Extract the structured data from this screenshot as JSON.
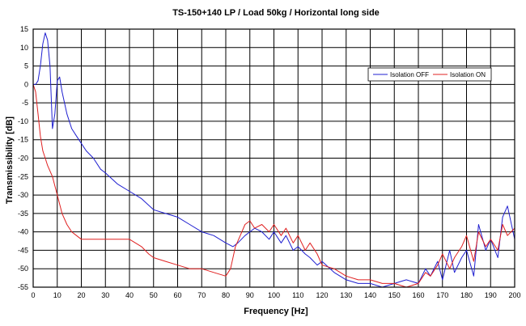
{
  "chart_data": {
    "type": "line",
    "title": "TS-150+140 LP / Load 50kg / Horizontal long side",
    "xlabel": "Frequency [Hz]",
    "ylabel": "Transmissibility [dB]",
    "xlim": [
      0,
      200
    ],
    "ylim": [
      -55,
      15
    ],
    "xticks": [
      0,
      10,
      20,
      30,
      40,
      50,
      60,
      70,
      80,
      90,
      100,
      110,
      120,
      130,
      140,
      150,
      160,
      170,
      180,
      190,
      200
    ],
    "yticks": [
      15,
      10,
      5,
      0,
      -5,
      -10,
      -15,
      -20,
      -25,
      -30,
      -35,
      -40,
      -45,
      -50,
      -55
    ],
    "grid": true,
    "legend_position": "top-right",
    "series": [
      {
        "name": "Isolation OFF",
        "color": "#1f1fd0",
        "x": [
          0,
          1,
          2,
          3,
          4,
          5,
          6,
          7,
          8,
          9,
          10,
          11,
          12,
          14,
          16,
          18,
          20,
          22,
          25,
          28,
          30,
          35,
          40,
          45,
          50,
          55,
          60,
          65,
          70,
          75,
          80,
          83,
          85,
          88,
          90,
          92,
          95,
          98,
          100,
          103,
          105,
          108,
          110,
          113,
          115,
          118,
          120,
          125,
          130,
          135,
          140,
          145,
          150,
          155,
          160,
          163,
          165,
          168,
          170,
          173,
          175,
          178,
          180,
          183,
          185,
          188,
          190,
          193,
          195,
          197,
          200
        ],
        "y": [
          0,
          0,
          1,
          5,
          11,
          14,
          12,
          5,
          -12,
          -8,
          1,
          2,
          -2,
          -8,
          -12,
          -14,
          -16,
          -18,
          -20,
          -23,
          -24,
          -27,
          -29,
          -31,
          -34,
          -35,
          -36,
          -38,
          -40,
          -41,
          -43,
          -44,
          -43,
          -41,
          -40,
          -39,
          -40,
          -42,
          -40,
          -43,
          -41,
          -45,
          -44,
          -46,
          -47,
          -49,
          -48,
          -51,
          -53,
          -54,
          -54,
          -55,
          -54,
          -53,
          -54,
          -50,
          -52,
          -48,
          -53,
          -45,
          -51,
          -47,
          -45,
          -52,
          -38,
          -45,
          -42,
          -47,
          -36,
          -33,
          -42
        ]
      },
      {
        "name": "Isolation ON",
        "color": "#e02020",
        "x": [
          0,
          1,
          2,
          3,
          4,
          5,
          6,
          8,
          10,
          12,
          14,
          16,
          18,
          20,
          25,
          30,
          35,
          40,
          45,
          48,
          50,
          55,
          60,
          65,
          70,
          75,
          80,
          82,
          84,
          86,
          88,
          90,
          92,
          95,
          98,
          100,
          103,
          105,
          108,
          110,
          113,
          115,
          118,
          120,
          125,
          130,
          135,
          140,
          145,
          150,
          155,
          160,
          163,
          165,
          168,
          170,
          173,
          175,
          178,
          180,
          183,
          185,
          188,
          190,
          193,
          195,
          197,
          200
        ],
        "y": [
          0,
          -2,
          -8,
          -14,
          -18,
          -20,
          -22,
          -25,
          -30,
          -35,
          -38,
          -40,
          -41,
          -42,
          -42,
          -42,
          -42,
          -42,
          -44,
          -46,
          -47,
          -48,
          -49,
          -50,
          -50,
          -51,
          -52,
          -50,
          -44,
          -41,
          -38,
          -37,
          -39,
          -38,
          -40,
          -38,
          -41,
          -39,
          -43,
          -41,
          -45,
          -43,
          -46,
          -49,
          -50,
          -52,
          -53,
          -53,
          -54,
          -54,
          -55,
          -54,
          -51,
          -52,
          -49,
          -46,
          -50,
          -47,
          -44,
          -41,
          -48,
          -40,
          -44,
          -42,
          -45,
          -38,
          -41,
          -39
        ]
      }
    ]
  }
}
